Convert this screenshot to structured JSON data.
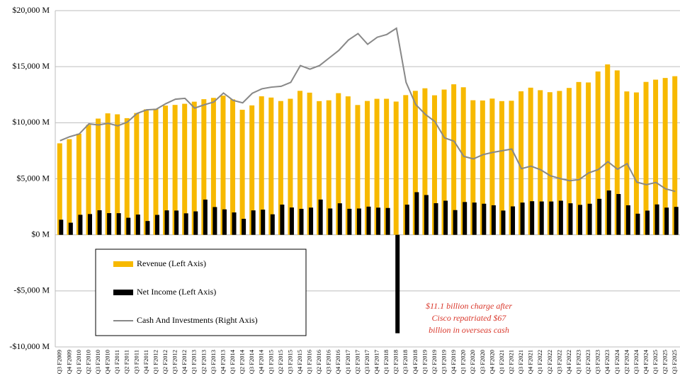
{
  "chart_data": {
    "type": "bar",
    "categories": [
      "Q3 F2009",
      "Q4 F2009",
      "Q1 F2010",
      "Q2 F2010",
      "Q3 F2010",
      "Q4 F2010",
      "Q1 F2011",
      "Q2 F2011",
      "Q3 F2011",
      "Q4 F2011",
      "Q1 F2012",
      "Q2 F2012",
      "Q3 F2012",
      "Q4 F2012",
      "Q1 F2013",
      "Q2 F2013",
      "Q3 F2013",
      "Q4 F2013",
      "Q1 F2014",
      "Q2 F2014",
      "Q3 F2014",
      "Q4 F2014",
      "Q1 F2015",
      "Q2 F2015",
      "Q3 F2015",
      "Q4 F2015",
      "Q1 F2016",
      "Q2 F2016",
      "Q3 F2016",
      "Q4 F2016",
      "Q1 F2017",
      "Q2 F2017",
      "Q3 F2017",
      "Q4 F2017",
      "Q1 F2018",
      "Q2 F2018",
      "Q3 F2018",
      "Q4 F2018",
      "Q1 F2019",
      "Q2 F2019",
      "Q3 F2019",
      "Q4 F2019",
      "Q1 F2020",
      "Q2 F2020",
      "Q3 F2020",
      "Q4 F2020",
      "Q1 F2021",
      "Q2 F2021",
      "Q3 F2021",
      "Q4 F2021",
      "Q1 F2022",
      "Q2 F2022",
      "Q3 F2022",
      "Q4 F2022",
      "Q1 F2023",
      "Q2 F2023",
      "Q3 F2023",
      "Q4 F2023",
      "Q1 F2024",
      "Q2 F2024",
      "Q3 F2024",
      "Q4 F2024",
      "Q1 F2025",
      "Q2 F2025",
      "Q3 F2025"
    ],
    "series": [
      {
        "name": "Revenue (Left Axis)",
        "color": "#f7b900",
        "values": [
          8162,
          8535,
          9021,
          9815,
          10368,
          10836,
          10750,
          10407,
          10866,
          11195,
          11256,
          11527,
          11588,
          11690,
          11876,
          12098,
          12216,
          12417,
          12085,
          11155,
          11545,
          12357,
          12245,
          11936,
          12137,
          12843,
          12682,
          11927,
          12000,
          12638,
          12352,
          11580,
          11940,
          12133,
          12136,
          11887,
          12463,
          12844,
          13072,
          12446,
          12958,
          13428,
          13163,
          12005,
          11983,
          12154,
          11929,
          11960,
          12803,
          13126,
          12900,
          12723,
          12835,
          13102,
          13632,
          13592,
          14571,
          15203,
          14668,
          12791,
          12702,
          13640,
          13841,
          13991,
          14149
        ]
      },
      {
        "name": "Net Income (Left Axis)",
        "color": "#000000",
        "values": [
          1348,
          1081,
          1787,
          1853,
          2192,
          1935,
          1930,
          1521,
          1807,
          1232,
          1777,
          2182,
          2165,
          1917,
          2092,
          3143,
          2478,
          2270,
          1997,
          1429,
          2181,
          2247,
          1830,
          2697,
          2437,
          2319,
          2430,
          3147,
          2349,
          2813,
          2322,
          2348,
          2515,
          2424,
          2394,
          -8778,
          2691,
          3803,
          3549,
          2822,
          3044,
          2206,
          2926,
          2878,
          2774,
          2635,
          2165,
          2536,
          2877,
          2998,
          2975,
          2973,
          3044,
          2815,
          2670,
          2773,
          3211,
          3958,
          3641,
          2634,
          1886,
          2160,
          2710,
          2428,
          2491
        ]
      },
      {
        "name": "Cash And Investments (Right Axis)",
        "type": "line",
        "axis": "y2",
        "color": "#888888",
        "values": [
          33600,
          35000,
          36000,
          39600,
          39200,
          39800,
          38900,
          40200,
          43300,
          44600,
          44800,
          46800,
          48400,
          48700,
          45200,
          46400,
          47400,
          50600,
          48000,
          47100,
          50500,
          52100,
          52700,
          53000,
          54400,
          60400,
          59100,
          60400,
          63100,
          65800,
          69500,
          71800,
          68000,
          70500,
          71500,
          73700,
          54400,
          46500,
          43000,
          40400,
          34600,
          33400,
          28000,
          27100,
          28600,
          29400,
          30000,
          30600,
          23600,
          24500,
          23200,
          21100,
          20100,
          19300,
          19700,
          22100,
          23300,
          26100,
          23400,
          25400,
          18800,
          17900,
          18700,
          16400,
          15500
        ]
      }
    ],
    "ylim": [
      -10000,
      20000
    ],
    "yticks": [
      {
        "value": -10000,
        "label": "-$10,000 M"
      },
      {
        "value": -5000,
        "label": "-$5,000 M"
      },
      {
        "value": 0,
        "label": "$0 M"
      },
      {
        "value": 5000,
        "label": "$5,000 M"
      },
      {
        "value": 10000,
        "label": "$10,000 M"
      },
      {
        "value": 15000,
        "label": "$15,000 M"
      },
      {
        "value": 20000,
        "label": "$20,000 M"
      }
    ],
    "y2lim": [
      -40000,
      80000
    ],
    "grid": true,
    "legend": "lower-left",
    "annotation": [
      "$11.1 billion charge after",
      "Cisco repatriated $67",
      "billion in overseas cash"
    ]
  }
}
